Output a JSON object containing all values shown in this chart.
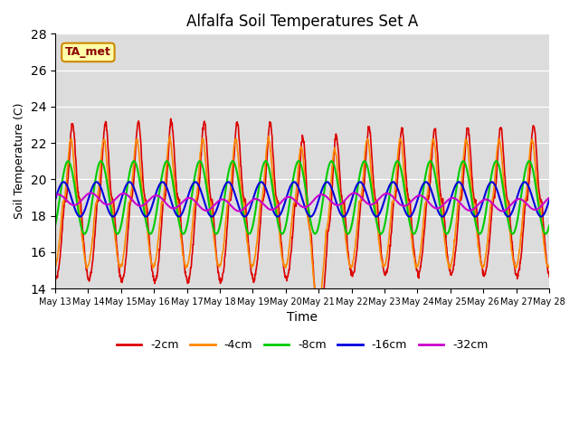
{
  "title": "Alfalfa Soil Temperatures Set A",
  "xlabel": "Time",
  "ylabel": "Soil Temperature (C)",
  "ylim": [
    14,
    28
  ],
  "yticks": [
    14,
    16,
    18,
    20,
    22,
    24,
    26,
    28
  ],
  "n_points": 1500,
  "colors": {
    "-2cm": "#dd0000",
    "-4cm": "#ff8800",
    "-8cm": "#00cc00",
    "-16cm": "#0000dd",
    "-32cm": "#cc00cc"
  },
  "legend_labels": [
    "-2cm",
    "-4cm",
    "-8cm",
    "-16cm",
    "-32cm"
  ],
  "background_color": "#dcdcdc",
  "annotation_text": "TA_met",
  "annotation_bg": "#ffffaa",
  "annotation_border": "#cc8800",
  "fig_bg": "#ffffff"
}
